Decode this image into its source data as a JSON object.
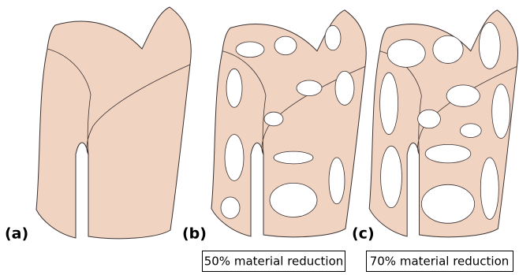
{
  "panels": [
    {
      "label": "(a)"
    },
    {
      "label": "(b)",
      "caption": "50% material reduction"
    },
    {
      "label": "(c)",
      "caption": "70% material reduction"
    }
  ]
}
